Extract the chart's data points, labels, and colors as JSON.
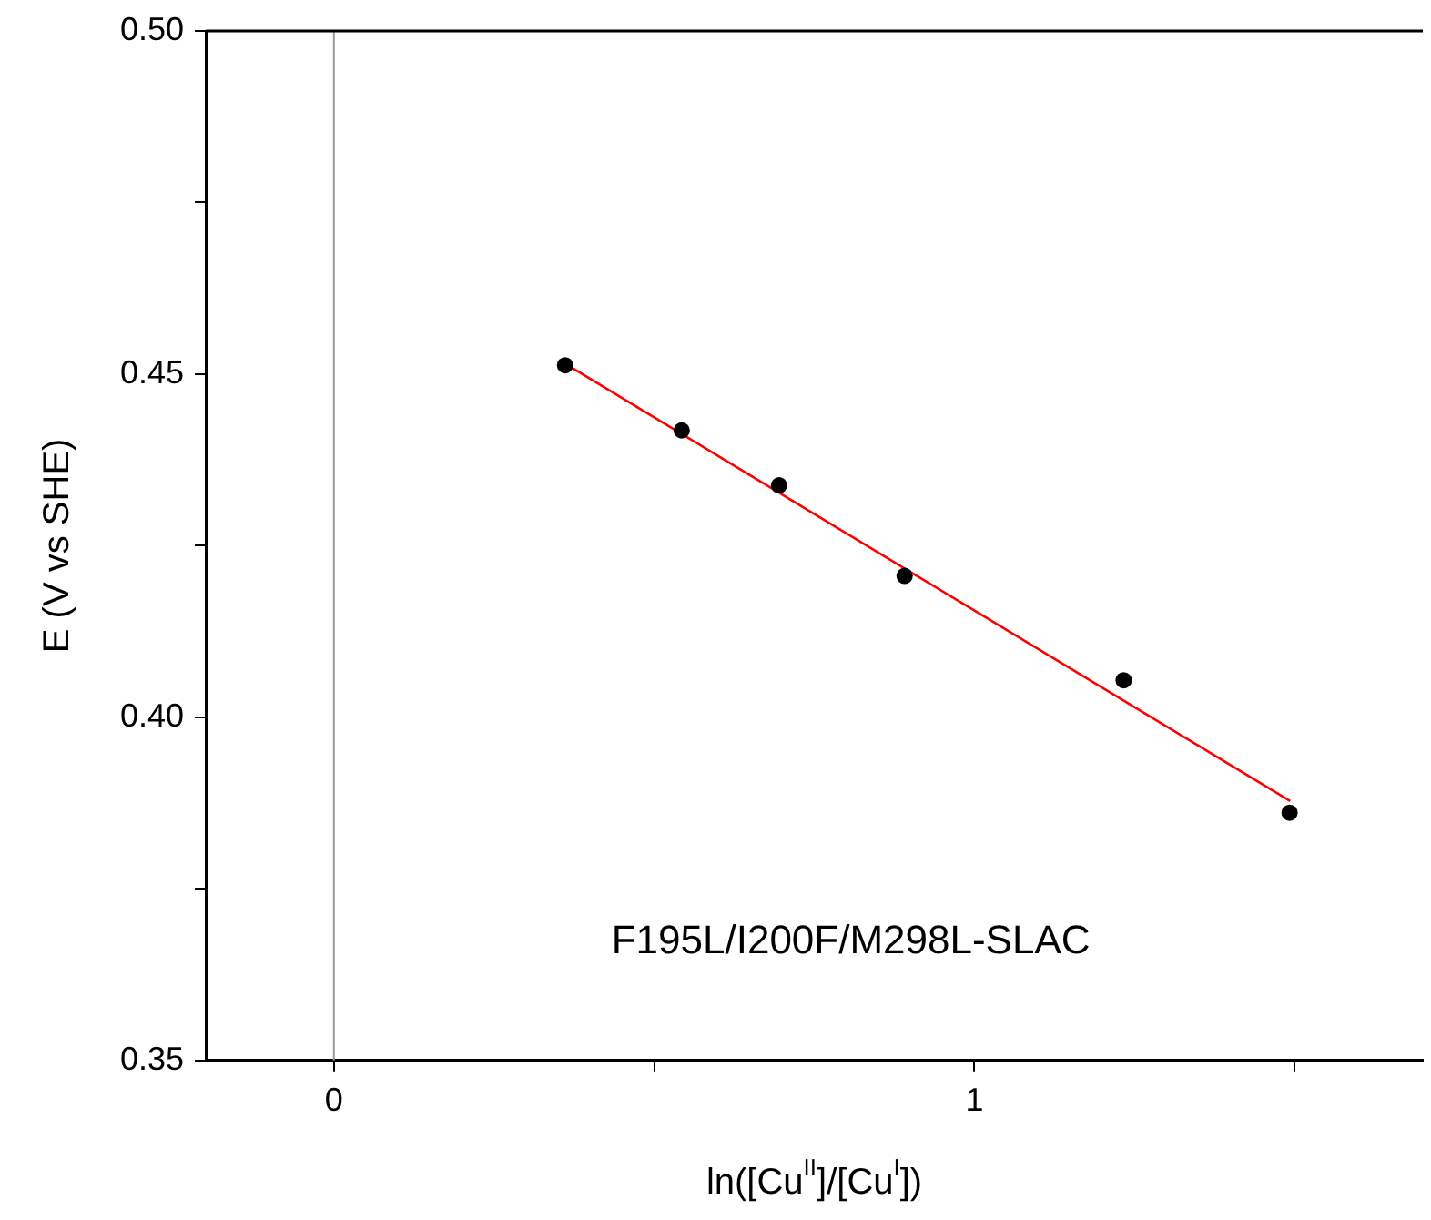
{
  "chart_data": {
    "type": "scatter",
    "xlabel": "ln([Cu$^{II}$]/[Cu$^{I}$])",
    "ylabel": "E (V vs SHE)",
    "series": [
      {
        "type": "scatter",
        "color": "#000000",
        "marker": "circle",
        "x": [
          0.361,
          0.543,
          0.695,
          0.891,
          1.233,
          1.492
        ],
        "values": [
          0.4513,
          0.4418,
          0.4338,
          0.4206,
          0.4054,
          0.3861
        ]
      },
      {
        "type": "line",
        "color": "#ff0000",
        "marker": "none",
        "line_style": "solid",
        "x": [
          0.365,
          1.493
        ],
        "values": [
          0.4513,
          0.3878
        ]
      }
    ],
    "xlim": [
      -0.2,
      1.7
    ],
    "ylim": [
      0.35,
      0.5
    ],
    "xticks": [
      0,
      {
        "value": 0.5,
        "label": null
      },
      1,
      {
        "value": 1.5,
        "label": null
      }
    ],
    "yticks": [
      {
        "value": 0.35,
        "label": "0.35"
      },
      {
        "value": 0.375,
        "label": null
      },
      {
        "value": 0.4,
        "label": "0.40"
      },
      {
        "value": 0.425,
        "label": null
      },
      {
        "value": 0.45,
        "label": "0.45"
      },
      {
        "value": 0.475,
        "label": null
      },
      {
        "value": 0.5,
        "label": "0.50"
      }
    ],
    "ref_lines": [
      {
        "axis": "x",
        "value": 0,
        "color": "#999999"
      }
    ],
    "annotations": [
      "F195L/I200F/M298L-SLAC"
    ],
    "grid": false,
    "legend": false
  }
}
